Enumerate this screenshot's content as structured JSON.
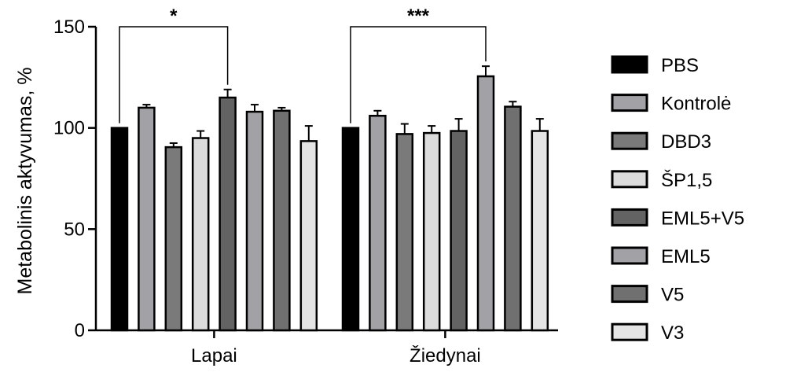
{
  "chart_data": {
    "type": "bar",
    "title": "",
    "xlabel": "",
    "ylabel": "Metabolinis aktyvumas, %",
    "ylim": [
      0,
      150
    ],
    "yticks": [
      0,
      50,
      100,
      150
    ],
    "categories": [
      "Lapai",
      "Žiedynai"
    ],
    "legend_position": "right",
    "series": [
      {
        "name": "PBS",
        "color": "#000000",
        "values": [
          100,
          100
        ],
        "errors": [
          0,
          0
        ]
      },
      {
        "name": "Kontrolė",
        "color": "#a2a2a6",
        "values": [
          110,
          106
        ],
        "errors": [
          1.5,
          2.5
        ]
      },
      {
        "name": "DBD3",
        "color": "#7a7a7a",
        "values": [
          90.5,
          97
        ],
        "errors": [
          2,
          5
        ]
      },
      {
        "name": "ŠP1,5",
        "color": "#dcdcdc",
        "values": [
          95,
          97.5
        ],
        "errors": [
          3.5,
          3.5
        ]
      },
      {
        "name": "EML5+V5",
        "color": "#636363",
        "values": [
          115,
          98.5
        ],
        "errors": [
          4,
          6
        ]
      },
      {
        "name": "EML5",
        "color": "#a2a2a6",
        "values": [
          108,
          125.5
        ],
        "errors": [
          3.5,
          5
        ]
      },
      {
        "name": "V5",
        "color": "#707070",
        "values": [
          108.5,
          110.5
        ],
        "errors": [
          1.5,
          2.5
        ]
      },
      {
        "name": "V3",
        "color": "#e4e4e4",
        "values": [
          93.5,
          98.5
        ],
        "errors": [
          7.5,
          6
        ]
      }
    ],
    "annotations": [
      {
        "label": "*",
        "category": "Lapai",
        "from_series": 0,
        "to_series": 4,
        "bracket_y": 150
      },
      {
        "label": "***",
        "category": "Žiedynai",
        "from_series": 0,
        "to_series": 5,
        "bracket_y": 150
      }
    ]
  }
}
